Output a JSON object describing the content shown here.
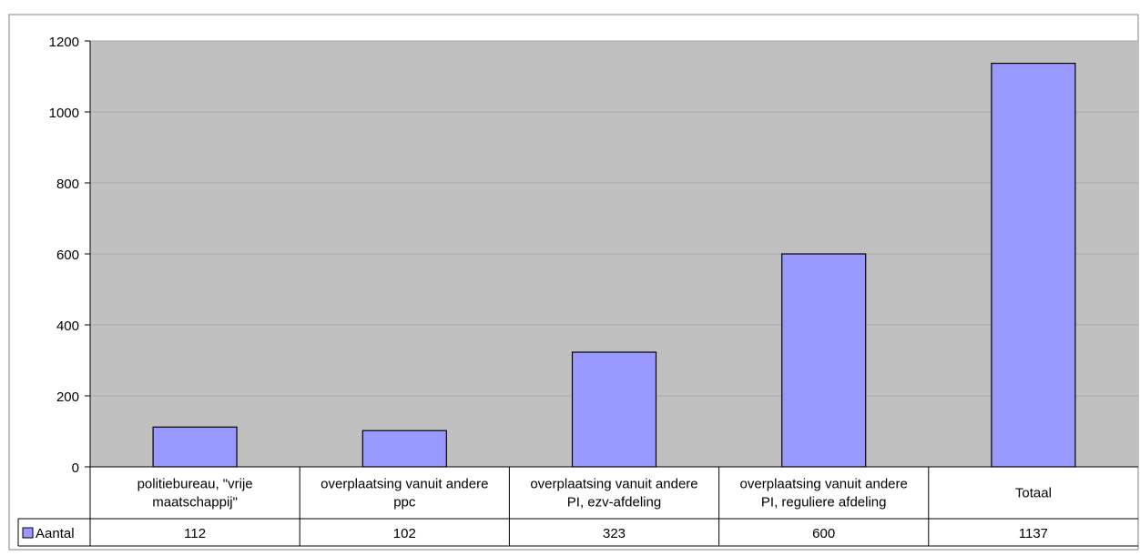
{
  "chart_data": {
    "type": "bar",
    "title": "",
    "xlabel": "",
    "ylabel": "",
    "categories": [
      [
        "politiebureau, \"vrije",
        "maatschappij\""
      ],
      [
        "overplaatsing vanuit andere",
        "ppc"
      ],
      [
        "overplaatsing vanuit andere",
        "PI, ezv-afdeling"
      ],
      [
        "overplaatsing vanuit andere",
        "PI, reguliere afdeling"
      ],
      [
        "Totaal"
      ]
    ],
    "series": [
      {
        "name": "Aantal",
        "values": [
          112,
          102,
          323,
          600,
          1137
        ]
      }
    ],
    "y_ticks": [
      "0",
      "200",
      "400",
      "600",
      "800",
      "1000",
      "1200"
    ],
    "ylim": [
      0,
      1200
    ],
    "grid": true,
    "legend": "data-table",
    "colors": {
      "plot_bg": "#c0c0c0",
      "bar_fill": "#9999ff",
      "bar_stroke": "#000000",
      "gridline": "#a8a8a8",
      "axis": "#000000"
    }
  }
}
